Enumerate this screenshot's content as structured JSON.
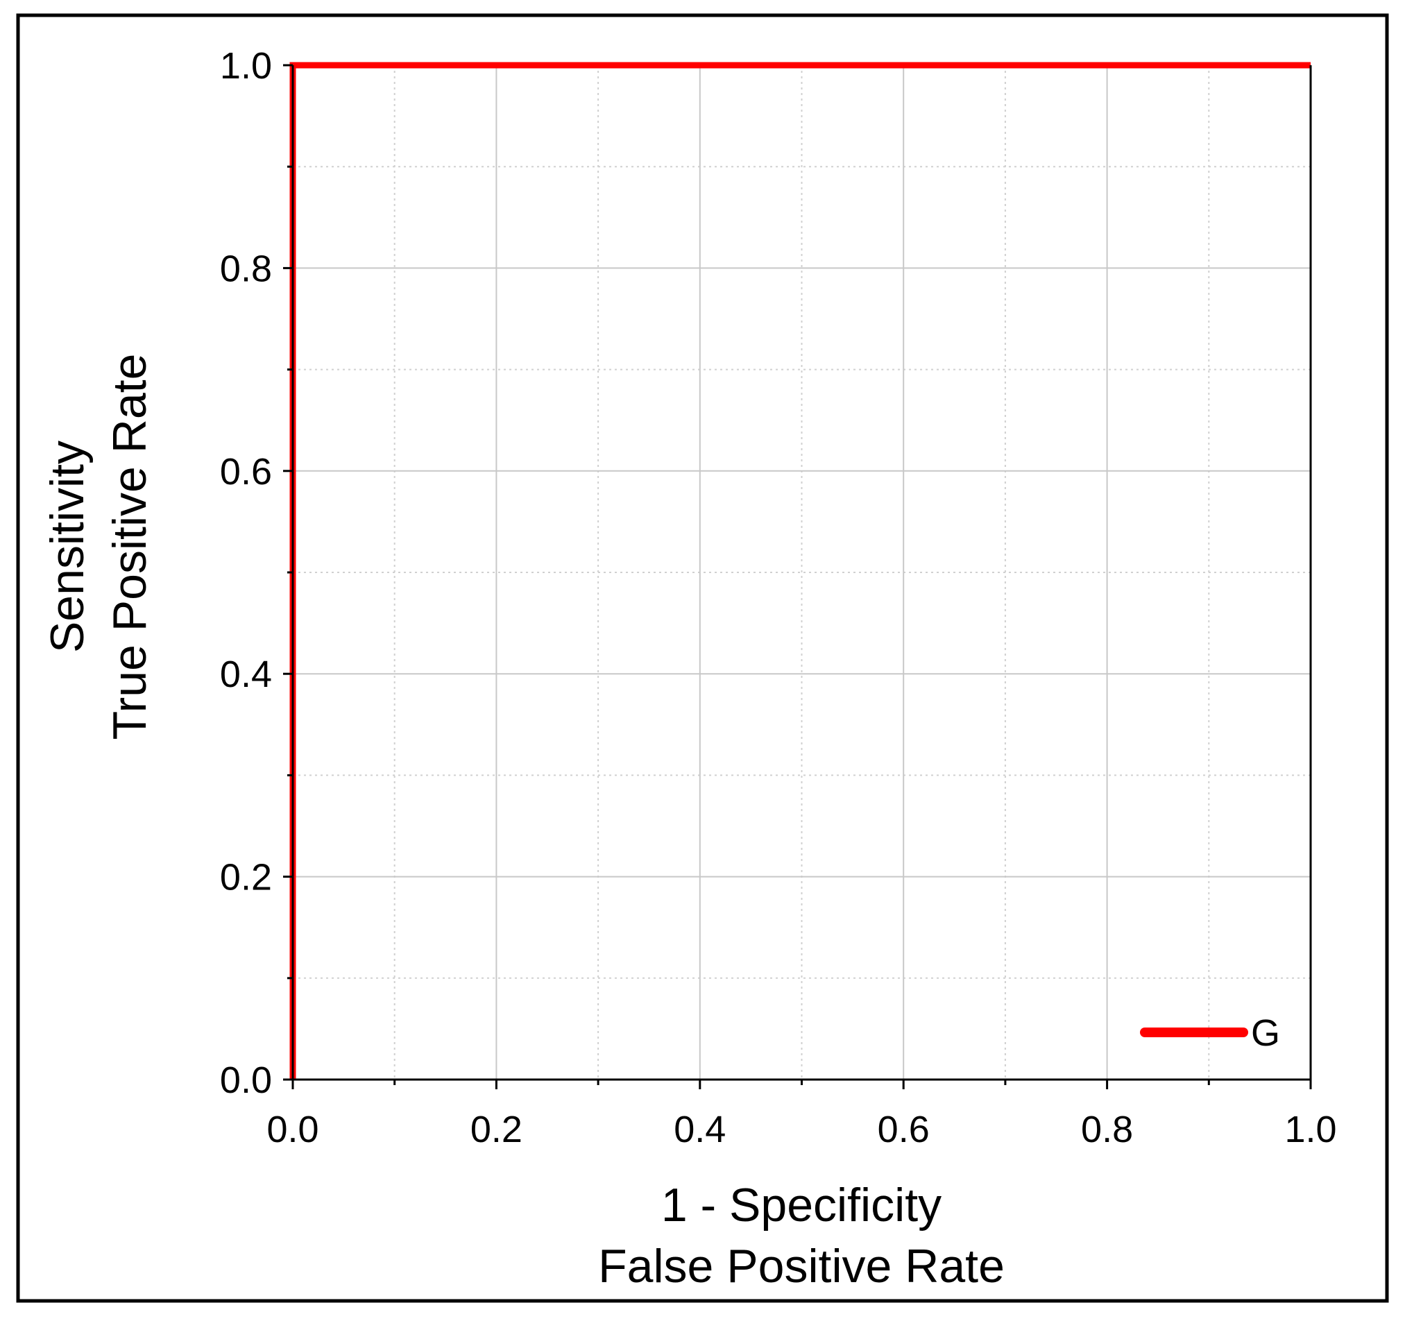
{
  "chart_data": {
    "type": "line",
    "title": "",
    "xlabel_lines": [
      "1 - Specificity",
      "False Positive Rate"
    ],
    "ylabel_lines": [
      "Sensitivity",
      "True Positive Rate"
    ],
    "xlim": [
      0,
      1
    ],
    "ylim": [
      0,
      1
    ],
    "x_ticks": [
      "0.0",
      "0.2",
      "0.4",
      "0.6",
      "0.8",
      "1.0"
    ],
    "y_ticks": [
      "0.0",
      "0.2",
      "0.4",
      "0.6",
      "0.8",
      "1.0"
    ],
    "grid": true,
    "legend_position": "bottom-right",
    "series": [
      {
        "name": "G",
        "color": "#ff0000",
        "x": [
          0.0,
          0.0,
          1.0
        ],
        "y": [
          0.0,
          1.0,
          1.0
        ]
      }
    ]
  }
}
